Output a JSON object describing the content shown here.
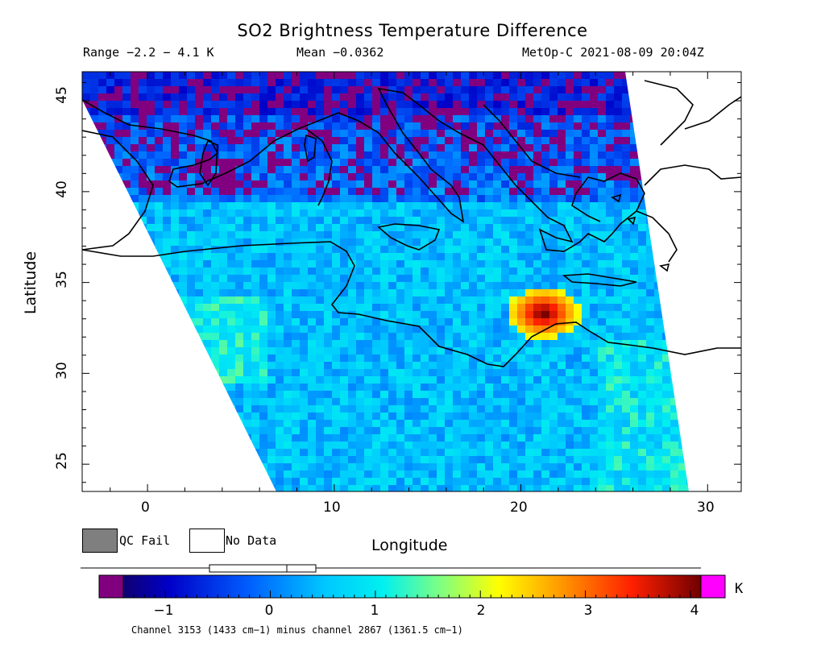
{
  "header": {
    "title": "SO2 Brightness Temperature Difference",
    "range": "Range −2.2 − 4.1 K",
    "mean": "Mean −0.0362",
    "satellite_time": "MetOp-C 2021-08-09 20:04Z"
  },
  "map": {
    "xlabel": "Longitude",
    "ylabel": "Latitude",
    "lon_ticks": [
      "0",
      "10",
      "20",
      "30"
    ],
    "lat_ticks": [
      "25",
      "30",
      "35",
      "40",
      "45"
    ],
    "lon_range": [
      -3.5,
      31.8
    ],
    "lat_range": [
      23.5,
      46.6
    ],
    "hotspot": {
      "lon": 21,
      "lat": 33.5,
      "value_K": 4.1
    }
  },
  "legend": {
    "qc_fail": "QC Fail",
    "no_data": "No Data",
    "qc_color": "#7f7f7f"
  },
  "colorbar": {
    "unit": "K",
    "ticks": [
      "−1",
      "0",
      "1",
      "2",
      "3",
      "4"
    ],
    "tick_values": [
      -1,
      0,
      1,
      2,
      3,
      4
    ],
    "range": [
      -1.4,
      4.1
    ],
    "under_color": "#800080",
    "over_color": "#ff00ff"
  },
  "footnote": "Channel 3153 (1433 cm−1) minus channel 2867 (1361.5 cm−1)"
}
